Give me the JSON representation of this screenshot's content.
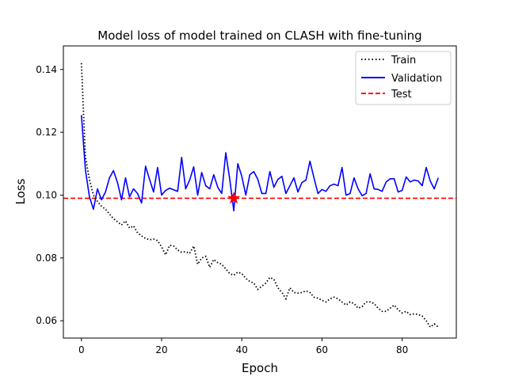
{
  "chart_data": {
    "type": "line",
    "title": "Model loss of model trained on CLASH with fine-tuning",
    "xlabel": "Epoch",
    "ylabel": "Loss",
    "xlim": [
      -4.5,
      93.5
    ],
    "ylim": [
      0.0545,
      0.1475
    ],
    "xticks": [
      0,
      20,
      40,
      60,
      80
    ],
    "yticks": [
      0.06,
      0.08,
      0.1,
      0.12,
      0.14
    ],
    "ytick_labels": [
      "0.06",
      "0.08",
      "0.10",
      "0.12",
      "0.14"
    ],
    "legend_position": "upper right",
    "series": [
      {
        "name": "Train",
        "color": "#000000",
        "style": "dotted",
        "x": [
          0,
          1,
          2,
          3,
          4,
          5,
          6,
          7,
          8,
          9,
          10,
          11,
          12,
          13,
          14,
          15,
          16,
          17,
          18,
          19,
          20,
          21,
          22,
          23,
          24,
          25,
          26,
          27,
          28,
          29,
          30,
          31,
          32,
          33,
          34,
          35,
          36,
          37,
          38,
          39,
          40,
          41,
          42,
          43,
          44,
          45,
          46,
          47,
          48,
          49,
          50,
          51,
          52,
          53,
          54,
          55,
          56,
          57,
          58,
          59,
          60,
          61,
          62,
          63,
          64,
          65,
          66,
          67,
          68,
          69,
          70,
          71,
          72,
          73,
          74,
          75,
          76,
          77,
          78,
          79,
          80,
          81,
          82,
          83,
          84,
          85,
          86,
          87,
          88,
          89
        ],
        "values": [
          0.142,
          0.112,
          0.105,
          0.1,
          0.098,
          0.0965,
          0.0955,
          0.094,
          0.0925,
          0.0915,
          0.0905,
          0.0918,
          0.0895,
          0.0902,
          0.088,
          0.087,
          0.0862,
          0.0858,
          0.086,
          0.0855,
          0.0835,
          0.081,
          0.084,
          0.0838,
          0.0825,
          0.0818,
          0.082,
          0.0815,
          0.0838,
          0.078,
          0.08,
          0.0805,
          0.077,
          0.0795,
          0.0785,
          0.078,
          0.0765,
          0.075,
          0.0745,
          0.0755,
          0.075,
          0.0735,
          0.0725,
          0.072,
          0.07,
          0.071,
          0.072,
          0.0738,
          0.0732,
          0.0705,
          0.069,
          0.067,
          0.0705,
          0.069,
          0.0688,
          0.069,
          0.0695,
          0.069,
          0.0675,
          0.0672,
          0.0665,
          0.066,
          0.067,
          0.0675,
          0.067,
          0.066,
          0.065,
          0.066,
          0.0655,
          0.064,
          0.0645,
          0.066,
          0.066,
          0.0655,
          0.064,
          0.063,
          0.063,
          0.064,
          0.065,
          0.0635,
          0.0625,
          0.063,
          0.062,
          0.0622,
          0.062,
          0.0615,
          0.06,
          0.058,
          0.059,
          0.058
        ]
      },
      {
        "name": "Validation",
        "color": "#0000ff",
        "style": "solid",
        "x": [
          0,
          1,
          2,
          3,
          4,
          5,
          6,
          7,
          8,
          9,
          10,
          11,
          12,
          13,
          14,
          15,
          16,
          17,
          18,
          19,
          20,
          21,
          22,
          23,
          24,
          25,
          26,
          27,
          28,
          29,
          30,
          31,
          32,
          33,
          34,
          35,
          36,
          37,
          38,
          39,
          40,
          41,
          42,
          43,
          44,
          45,
          46,
          47,
          48,
          49,
          50,
          51,
          52,
          53,
          54,
          55,
          56,
          57,
          58,
          59,
          60,
          61,
          62,
          63,
          64,
          65,
          66,
          67,
          68,
          69,
          70,
          71,
          72,
          73,
          74,
          75,
          76,
          77,
          78,
          79,
          80,
          81,
          82,
          83,
          84,
          85,
          86,
          87,
          88,
          89
        ],
        "values": [
          0.1255,
          0.108,
          0.0995,
          0.0955,
          0.102,
          0.0985,
          0.101,
          0.1055,
          0.1078,
          0.104,
          0.0985,
          0.1055,
          0.0995,
          0.102,
          0.1005,
          0.0975,
          0.1092,
          0.105,
          0.101,
          0.1088,
          0.1,
          0.1015,
          0.1022,
          0.1017,
          0.1012,
          0.112,
          0.102,
          0.1048,
          0.109,
          0.1,
          0.1072,
          0.103,
          0.102,
          0.1065,
          0.1025,
          0.1005,
          0.1135,
          0.105,
          0.095,
          0.11,
          0.106,
          0.1,
          0.1065,
          0.1075,
          0.105,
          0.1005,
          0.1005,
          0.1075,
          0.1025,
          0.105,
          0.106,
          0.1005,
          0.103,
          0.1055,
          0.101,
          0.104,
          0.1048,
          0.1108,
          0.1055,
          0.1005,
          0.1018,
          0.1012,
          0.103,
          0.1035,
          0.103,
          0.1088,
          0.1,
          0.1005,
          0.1055,
          0.102,
          0.0998,
          0.1005,
          0.1068,
          0.102,
          0.1018,
          0.1012,
          0.1042,
          0.1052,
          0.1052,
          0.101,
          0.1015,
          0.1058,
          0.1042,
          0.1048,
          0.1045,
          0.103,
          0.1088,
          0.1045,
          0.102,
          0.1055
        ]
      },
      {
        "name": "Test",
        "color": "#ff0000",
        "style": "dashed",
        "value": 0.099,
        "marker_x": 38,
        "marker_y": 0.099,
        "marker": "star"
      }
    ]
  }
}
